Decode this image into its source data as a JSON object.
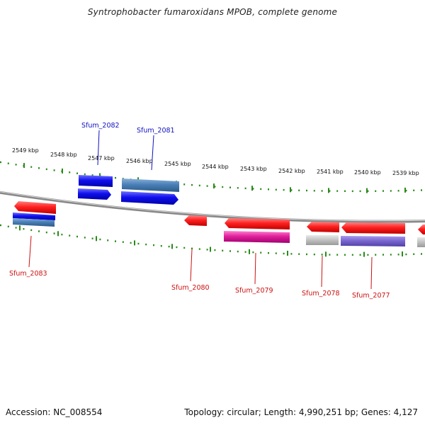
{
  "title": "Syntrophobacter fumaroxidans MPOB, complete genome",
  "footer": {
    "accession": "Accession: NC_008554",
    "summary": "Topology: circular; Length: 4,990,251 bp; Genes: 4,127"
  },
  "colors": {
    "backbone": "#8a8a8a",
    "tick": "#2a8a1a",
    "label_forward": "#1010c0",
    "label_reverse": "#cc1010"
  },
  "scale_labels": [
    "2549 kbp",
    "2548 kbp",
    "2547 kbp",
    "2546 kbp",
    "2545 kbp",
    "2544 kbp",
    "2543 kbp",
    "2542 kbp",
    "2541 kbp",
    "2540 kbp",
    "2539 kbp"
  ],
  "features": [
    {
      "id": "Sfum_2082",
      "label": "Sfum_2082",
      "strand": "forward",
      "gene_color": "#1a1aee",
      "product_color": "#1a1aee"
    },
    {
      "id": "Sfum_2081",
      "label": "Sfum_2081",
      "strand": "forward",
      "gene_color": "#1a1aee",
      "product_color": "#4a80b8"
    },
    {
      "id": "Sfum_2083",
      "label": "Sfum_2083",
      "strand": "reverse",
      "gene_color": "#ee1a1a",
      "product_color": "#1a1aee"
    },
    {
      "id": "Sfum_2080",
      "label": "Sfum_2080",
      "strand": "reverse",
      "gene_color": "#ee1a1a",
      "product_color": null
    },
    {
      "id": "Sfum_2079",
      "label": "Sfum_2079",
      "strand": "reverse",
      "gene_color": "#ee1a1a",
      "product_color": "#e0209a"
    },
    {
      "id": "Sfum_2078",
      "label": "Sfum_2078",
      "strand": "reverse",
      "gene_color": "#ee1a1a",
      "product_color": "#b8b8b8"
    },
    {
      "id": "Sfum_2077",
      "label": "Sfum_2077",
      "strand": "reverse",
      "gene_color": "#ee1a1a",
      "product_color": "#7a68d0"
    },
    {
      "id": "edge",
      "label": "",
      "strand": "reverse",
      "gene_color": "#ee1a1a",
      "product_color": "#b8b8b8"
    }
  ]
}
